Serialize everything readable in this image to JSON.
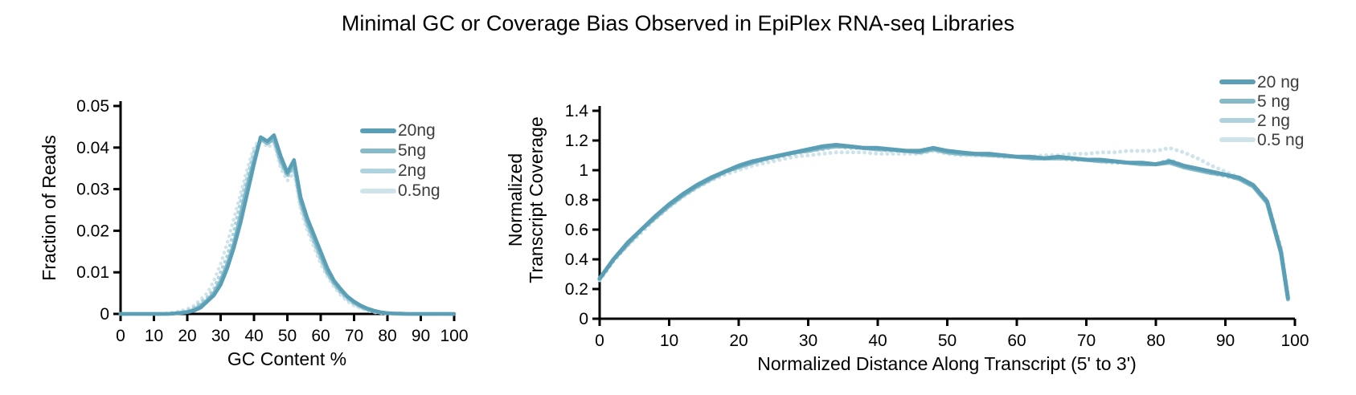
{
  "title": "Minimal GC or Coverage Bias Observed in EpiPlex RNA-seq Libraries",
  "colors": {
    "axis": "#000000",
    "tick_text": "#000000",
    "legend_text": "#3d3d3d",
    "background": "#ffffff",
    "series_ramp": [
      "#5A9FB5",
      "#85BAC9",
      "#AFD3DE",
      "#CFE4EA"
    ]
  },
  "chart_data": [
    {
      "type": "line",
      "title": "",
      "xlabel": "GC Content %",
      "ylabel": "Fraction of Reads",
      "xlim": [
        0,
        100
      ],
      "ylim": [
        0,
        0.05
      ],
      "grid": false,
      "legend_position": "upper-right-inside",
      "xticks": [
        0,
        10,
        20,
        30,
        40,
        50,
        60,
        70,
        80,
        90,
        100
      ],
      "xtick_labels": [
        "0",
        "10",
        "20",
        "30",
        "40",
        "50",
        "60",
        "70",
        "80",
        "90",
        "100"
      ],
      "yticks": [
        0,
        0.01,
        0.02,
        0.03,
        0.04,
        0.05
      ],
      "ytick_labels": [
        "0",
        "0.01",
        "0.02",
        "0.03",
        "0.04",
        "0.05"
      ],
      "x": [
        0,
        2,
        4,
        6,
        8,
        10,
        12,
        14,
        16,
        18,
        20,
        22,
        24,
        26,
        28,
        30,
        32,
        34,
        36,
        38,
        40,
        42,
        44,
        46,
        48,
        50,
        52,
        54,
        56,
        58,
        60,
        62,
        64,
        66,
        68,
        70,
        72,
        74,
        76,
        78,
        80,
        82,
        84,
        86,
        88,
        90,
        92,
        94,
        96,
        98,
        100
      ],
      "series": [
        {
          "name": "20ng",
          "color": "#5A9FB5",
          "style": "solid",
          "values": [
            0,
            0,
            0,
            0,
            0,
            0,
            0,
            0,
            0.0001,
            0.0002,
            0.0004,
            0.0008,
            0.0015,
            0.003,
            0.0045,
            0.007,
            0.011,
            0.016,
            0.022,
            0.029,
            0.036,
            0.0425,
            0.0415,
            0.043,
            0.038,
            0.034,
            0.037,
            0.028,
            0.023,
            0.019,
            0.015,
            0.011,
            0.008,
            0.006,
            0.0042,
            0.003,
            0.002,
            0.0013,
            0.0008,
            0.0004,
            0.0002,
            0.0001,
            0.0001,
            0,
            0,
            0,
            0,
            0,
            0,
            0,
            0
          ]
        },
        {
          "name": "5ng",
          "color": "#85BAC9",
          "style": "solid",
          "values": [
            0,
            0,
            0,
            0,
            0,
            0,
            0,
            0,
            0.0001,
            0.0003,
            0.0005,
            0.001,
            0.002,
            0.0033,
            0.005,
            0.008,
            0.012,
            0.017,
            0.024,
            0.031,
            0.037,
            0.042,
            0.041,
            0.042,
            0.037,
            0.0335,
            0.036,
            0.027,
            0.022,
            0.018,
            0.014,
            0.01,
            0.0075,
            0.0055,
            0.004,
            0.0027,
            0.0018,
            0.0011,
            0.0006,
            0.0003,
            0.0002,
            0.0001,
            0,
            0,
            0,
            0,
            0,
            0,
            0,
            0,
            0
          ]
        },
        {
          "name": "2ng",
          "color": "#AFD3DE",
          "style": "dotted",
          "values": [
            0,
            0,
            0,
            0,
            0,
            0,
            0,
            0.0001,
            0.0002,
            0.0004,
            0.0008,
            0.0015,
            0.0028,
            0.004,
            0.006,
            0.01,
            0.014,
            0.02,
            0.027,
            0.033,
            0.039,
            0.042,
            0.041,
            0.0415,
            0.036,
            0.033,
            0.035,
            0.026,
            0.021,
            0.017,
            0.013,
            0.0095,
            0.007,
            0.005,
            0.0035,
            0.0024,
            0.0015,
            0.0009,
            0.0005,
            0.0003,
            0.0001,
            0.0001,
            0,
            0,
            0,
            0,
            0,
            0,
            0,
            0,
            0
          ]
        },
        {
          "name": "0.5ng",
          "color": "#CFE4EA",
          "style": "dotted",
          "values": [
            0,
            0,
            0,
            0,
            0,
            0,
            0.0001,
            0.0002,
            0.0004,
            0.0007,
            0.0012,
            0.002,
            0.0035,
            0.005,
            0.008,
            0.012,
            0.017,
            0.023,
            0.029,
            0.035,
            0.04,
            0.0425,
            0.04,
            0.041,
            0.035,
            0.032,
            0.034,
            0.025,
            0.02,
            0.016,
            0.012,
            0.009,
            0.0065,
            0.0045,
            0.003,
            0.002,
            0.0013,
            0.0008,
            0.0004,
            0.0002,
            0.0001,
            0,
            0,
            0,
            0,
            0,
            0,
            0,
            0,
            0,
            0
          ]
        }
      ]
    },
    {
      "type": "line",
      "title": "",
      "xlabel": "Normalized Distance Along Transcript (5' to 3')",
      "ylabel": "Normalized Transcript Coverage",
      "ylabel_lines": [
        "Normalized",
        "Transcript Coverage"
      ],
      "xlim": [
        0,
        100
      ],
      "ylim": [
        0,
        1.4
      ],
      "grid": false,
      "legend_position": "upper-right-outside",
      "xticks": [
        0,
        10,
        20,
        30,
        40,
        50,
        60,
        70,
        80,
        90,
        100
      ],
      "xtick_labels": [
        "0",
        "10",
        "20",
        "30",
        "40",
        "50",
        "60",
        "70",
        "80",
        "90",
        "100"
      ],
      "yticks": [
        0,
        0.2,
        0.4,
        0.6,
        0.8,
        1,
        1.2,
        1.4
      ],
      "ytick_labels": [
        "0",
        "0.2",
        "0.4",
        "0.6",
        "0.8",
        "1",
        "1.2",
        "1.4"
      ],
      "x": [
        0,
        2,
        4,
        6,
        8,
        10,
        12,
        14,
        16,
        18,
        20,
        22,
        24,
        26,
        28,
        30,
        32,
        34,
        36,
        38,
        40,
        42,
        44,
        46,
        48,
        50,
        52,
        54,
        56,
        58,
        60,
        62,
        64,
        66,
        68,
        70,
        72,
        74,
        76,
        78,
        80,
        82,
        84,
        86,
        88,
        90,
        92,
        94,
        96,
        98,
        99
      ],
      "series": [
        {
          "name": "20 ng",
          "color": "#5A9FB5",
          "style": "solid",
          "values": [
            0.27,
            0.4,
            0.51,
            0.6,
            0.69,
            0.77,
            0.84,
            0.9,
            0.95,
            0.99,
            1.03,
            1.06,
            1.08,
            1.1,
            1.12,
            1.14,
            1.16,
            1.17,
            1.16,
            1.15,
            1.15,
            1.14,
            1.13,
            1.13,
            1.15,
            1.13,
            1.12,
            1.11,
            1.11,
            1.1,
            1.09,
            1.09,
            1.08,
            1.09,
            1.08,
            1.07,
            1.07,
            1.06,
            1.05,
            1.05,
            1.04,
            1.06,
            1.03,
            1.01,
            0.99,
            0.97,
            0.95,
            0.9,
            0.79,
            0.45,
            0.14
          ]
        },
        {
          "name": "5 ng",
          "color": "#85BAC9",
          "style": "solid",
          "values": [
            0.27,
            0.4,
            0.5,
            0.6,
            0.68,
            0.76,
            0.83,
            0.89,
            0.94,
            0.99,
            1.02,
            1.05,
            1.08,
            1.1,
            1.12,
            1.13,
            1.15,
            1.16,
            1.16,
            1.15,
            1.14,
            1.14,
            1.13,
            1.12,
            1.14,
            1.12,
            1.11,
            1.11,
            1.1,
            1.1,
            1.09,
            1.08,
            1.08,
            1.08,
            1.08,
            1.07,
            1.06,
            1.06,
            1.05,
            1.04,
            1.04,
            1.05,
            1.02,
            1.0,
            0.98,
            0.97,
            0.94,
            0.89,
            0.78,
            0.44,
            0.13
          ]
        },
        {
          "name": "2 ng",
          "color": "#AFD3DE",
          "style": "dotted",
          "values": [
            0.26,
            0.39,
            0.5,
            0.59,
            0.68,
            0.76,
            0.83,
            0.89,
            0.94,
            0.98,
            1.02,
            1.05,
            1.07,
            1.09,
            1.11,
            1.13,
            1.14,
            1.16,
            1.15,
            1.15,
            1.14,
            1.13,
            1.13,
            1.12,
            1.14,
            1.12,
            1.11,
            1.1,
            1.1,
            1.09,
            1.09,
            1.08,
            1.08,
            1.08,
            1.07,
            1.07,
            1.06,
            1.05,
            1.05,
            1.04,
            1.04,
            1.07,
            1.03,
            1.01,
            0.98,
            0.96,
            0.94,
            0.89,
            0.79,
            0.46,
            0.14
          ]
        },
        {
          "name": "0.5 ng",
          "color": "#CFE4EA",
          "style": "dotted",
          "values": [
            0.26,
            0.39,
            0.49,
            0.58,
            0.67,
            0.75,
            0.82,
            0.88,
            0.93,
            0.97,
            1.0,
            1.03,
            1.05,
            1.07,
            1.09,
            1.1,
            1.11,
            1.12,
            1.12,
            1.12,
            1.11,
            1.11,
            1.11,
            1.11,
            1.13,
            1.11,
            1.1,
            1.1,
            1.1,
            1.09,
            1.09,
            1.09,
            1.1,
            1.1,
            1.11,
            1.11,
            1.12,
            1.12,
            1.13,
            1.13,
            1.13,
            1.15,
            1.12,
            1.08,
            1.03,
            0.99,
            0.95,
            0.9,
            0.8,
            0.48,
            0.16
          ]
        }
      ]
    }
  ]
}
